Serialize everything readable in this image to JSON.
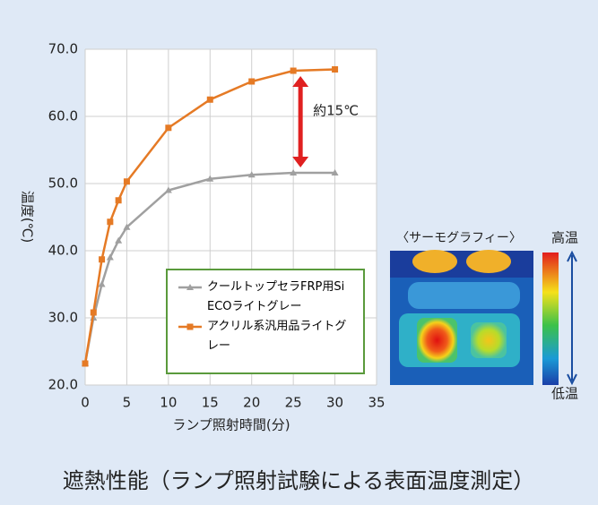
{
  "chart_data": {
    "type": "line",
    "title": "遮熱性能（ランプ照射試験による表面温度測定）",
    "x_label": "ランプ照射時間(分)",
    "y_label": "温度(℃)",
    "x": [
      0,
      1,
      2,
      3,
      4,
      5,
      10,
      15,
      20,
      25,
      30
    ],
    "series": [
      {
        "name": "クールトップセラFRP用Si ECOライトグレー",
        "color": "#a0a0a0",
        "marker": "triangle",
        "values": [
          23.2,
          30.0,
          35.0,
          39.0,
          41.5,
          43.5,
          49.0,
          50.7,
          51.3,
          51.6,
          51.6
        ]
      },
      {
        "name": "アクリル系汎用品ライトグレー",
        "color": "#e57a25",
        "marker": "square",
        "values": [
          23.2,
          30.8,
          38.7,
          44.3,
          47.5,
          50.3,
          58.3,
          62.5,
          65.2,
          66.8,
          67.0
        ]
      }
    ],
    "xlim": [
      0,
      35
    ],
    "xticks": [
      0,
      5,
      10,
      15,
      20,
      25,
      30,
      35
    ],
    "ylim": [
      20,
      70
    ],
    "yticks": [
      {
        "value": 20,
        "label": "20.0"
      },
      {
        "value": 30,
        "label": "30.0"
      },
      {
        "value": 40,
        "label": "40.0"
      },
      {
        "value": 50,
        "label": "50.0"
      },
      {
        "value": 60,
        "label": "60.0"
      },
      {
        "value": 70,
        "label": "70.0"
      }
    ],
    "grid": true,
    "annotation": "約15℃",
    "thermography": {
      "title": "〈サーモグラフィー〉",
      "high": "高温",
      "low": "低温"
    }
  }
}
